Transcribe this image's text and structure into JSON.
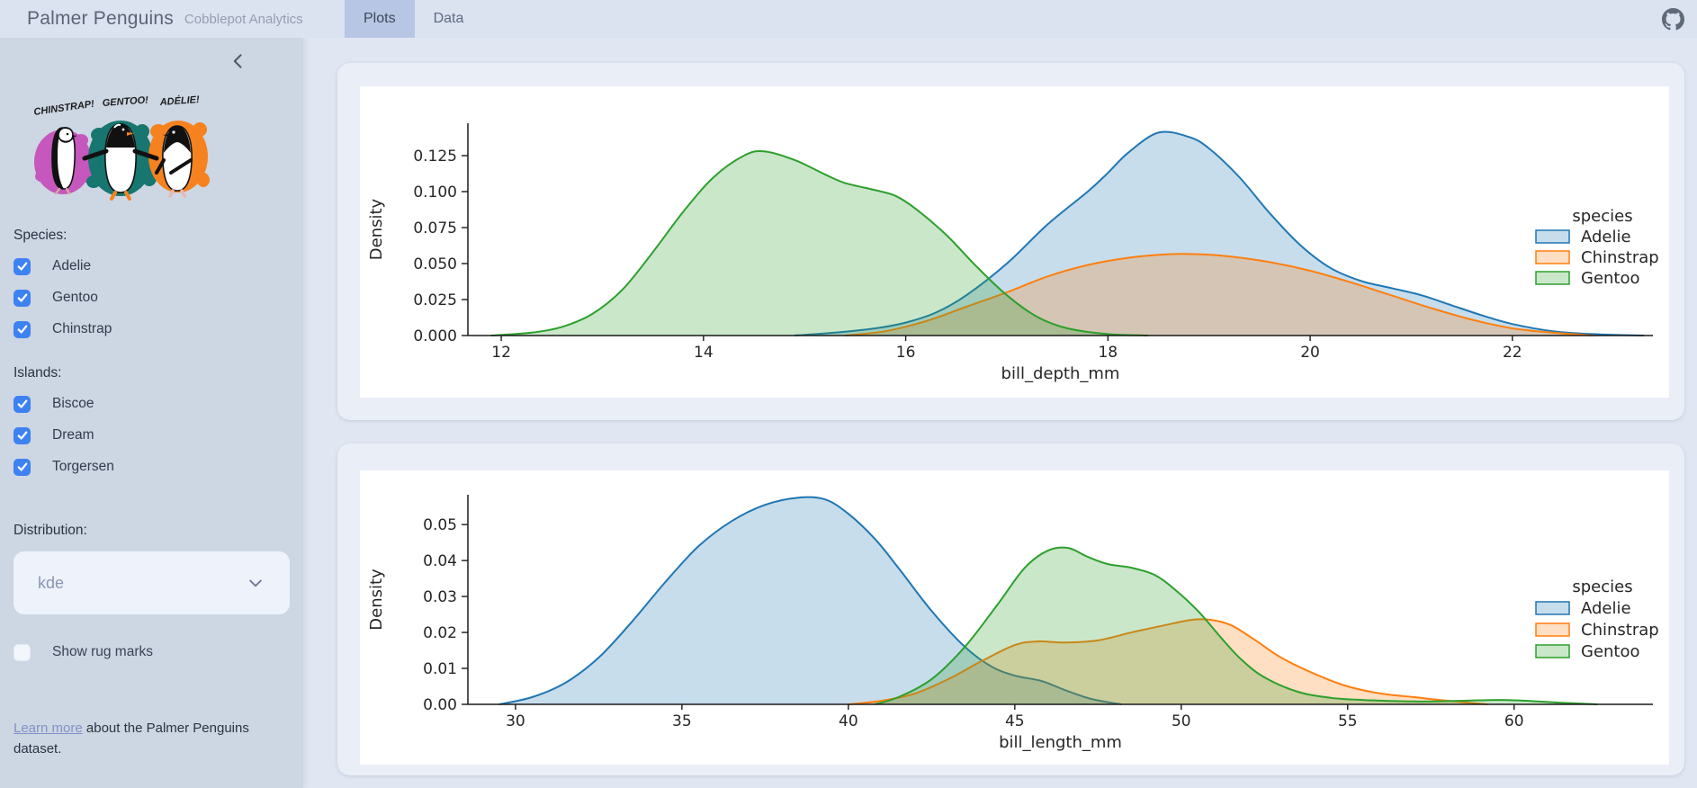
{
  "header": {
    "title": "Palmer Penguins",
    "subtitle": "Cobblepot Analytics",
    "tabs": [
      {
        "label": "Plots",
        "active": true
      },
      {
        "label": "Data",
        "active": false
      }
    ]
  },
  "sidebar": {
    "artwork_labels": [
      "CHINSTRAP!",
      "GENTOO!",
      "ADÉLIE!"
    ],
    "artwork_colors": [
      "#c557bd",
      "#17766f",
      "#f6821f"
    ],
    "species_label": "Species:",
    "species_options": [
      {
        "label": "Adelie",
        "checked": true
      },
      {
        "label": "Gentoo",
        "checked": true
      },
      {
        "label": "Chinstrap",
        "checked": true
      }
    ],
    "islands_label": "Islands:",
    "islands_options": [
      {
        "label": "Biscoe",
        "checked": true
      },
      {
        "label": "Dream",
        "checked": true
      },
      {
        "label": "Torgersen",
        "checked": true
      }
    ],
    "distribution_label": "Distribution:",
    "distribution_value": "kde",
    "rug_label": "Show rug marks",
    "rug_checked": false,
    "footer_link": "Learn more",
    "footer_text": " about the Palmer Penguins dataset."
  },
  "colors": {
    "checkbox_accent": "#3d82f2",
    "adelie": "#1f77b4",
    "chinstrap": "#ff7f0e",
    "gentoo": "#2ca02c",
    "header_bg": "#dbe2f0",
    "sidebar_bg": "#cdd6e3",
    "active_tab_bg": "#b7c6e5"
  },
  "chart_data": [
    {
      "type": "area",
      "kind": "kde",
      "xlabel": "bill_depth_mm",
      "ylabel": "Density",
      "xlim": [
        11.67,
        23.39
      ],
      "ylim": [
        0,
        0.1475
      ],
      "grid": false,
      "xticks": {
        "values": [
          12,
          14,
          16,
          18,
          20,
          22
        ],
        "labels": [
          "12",
          "14",
          "16",
          "18",
          "20",
          "22"
        ]
      },
      "yticks": {
        "values": [
          0,
          0.025,
          0.05,
          0.075,
          0.1,
          0.125
        ],
        "labels": [
          "0.000",
          "0.025",
          "0.050",
          "0.075",
          "0.100",
          "0.125"
        ]
      },
      "legend": {
        "title": "species",
        "position": "right",
        "entries": [
          "Adelie",
          "Chinstrap",
          "Gentoo"
        ]
      },
      "series": [
        {
          "name": "Adelie",
          "color": "#1f77b4",
          "x": [
            14.9,
            15.3,
            15.7,
            16.0,
            16.3,
            16.6,
            17.0,
            17.4,
            17.8,
            18.0,
            18.2,
            18.5,
            18.8,
            19.0,
            19.3,
            19.6,
            19.9,
            20.2,
            20.5,
            20.8,
            21.1,
            21.4,
            21.7,
            22.0,
            22.4,
            22.8,
            23.3
          ],
          "y": [
            0.0,
            0.002,
            0.005,
            0.009,
            0.016,
            0.028,
            0.05,
            0.077,
            0.1,
            0.113,
            0.127,
            0.141,
            0.138,
            0.13,
            0.11,
            0.085,
            0.063,
            0.047,
            0.038,
            0.033,
            0.028,
            0.021,
            0.014,
            0.008,
            0.003,
            0.001,
            0.0
          ]
        },
        {
          "name": "Chinstrap",
          "color": "#ff7f0e",
          "x": [
            15.4,
            15.8,
            16.2,
            16.6,
            17.0,
            17.4,
            17.8,
            18.2,
            18.6,
            18.9,
            19.2,
            19.6,
            20.0,
            20.4,
            20.8,
            21.2,
            21.6,
            22.0,
            22.4,
            22.8
          ],
          "y": [
            0.0,
            0.003,
            0.01,
            0.02,
            0.03,
            0.041,
            0.049,
            0.054,
            0.0565,
            0.0565,
            0.055,
            0.051,
            0.045,
            0.037,
            0.028,
            0.019,
            0.011,
            0.005,
            0.002,
            0.0
          ]
        },
        {
          "name": "Gentoo",
          "color": "#2ca02c",
          "x": [
            11.9,
            12.3,
            12.6,
            12.9,
            13.2,
            13.5,
            13.8,
            14.1,
            14.4,
            14.6,
            14.9,
            15.2,
            15.4,
            15.7,
            15.9,
            16.1,
            16.4,
            16.7,
            17.0,
            17.3,
            17.6,
            18.0,
            18.4
          ],
          "y": [
            0.0,
            0.002,
            0.006,
            0.015,
            0.032,
            0.058,
            0.086,
            0.11,
            0.125,
            0.128,
            0.122,
            0.112,
            0.106,
            0.101,
            0.097,
            0.088,
            0.07,
            0.048,
            0.028,
            0.013,
            0.005,
            0.001,
            0.0
          ]
        }
      ]
    },
    {
      "type": "area",
      "kind": "kde",
      "xlabel": "bill_length_mm",
      "ylabel": "Density",
      "xlim": [
        28.57,
        64.17
      ],
      "ylim": [
        0,
        0.0583
      ],
      "grid": false,
      "xticks": {
        "values": [
          30,
          35,
          40,
          45,
          50,
          55,
          60
        ],
        "labels": [
          "30",
          "35",
          "40",
          "45",
          "50",
          "55",
          "60"
        ]
      },
      "yticks": {
        "values": [
          0,
          0.01,
          0.02,
          0.03,
          0.04,
          0.05
        ],
        "labels": [
          "0.00",
          "0.01",
          "0.02",
          "0.03",
          "0.04",
          "0.05"
        ]
      },
      "legend": {
        "title": "species",
        "position": "right",
        "entries": [
          "Adelie",
          "Chinstrap",
          "Gentoo"
        ]
      },
      "series": [
        {
          "name": "Adelie",
          "color": "#1f77b4",
          "x": [
            29.5,
            30.5,
            31.5,
            32.5,
            33.5,
            34.5,
            35.5,
            36.5,
            37.5,
            38.5,
            39.3,
            40.0,
            40.8,
            41.5,
            42.5,
            43.5,
            44.3,
            45.0,
            45.8,
            46.5,
            47.3,
            48.2
          ],
          "y": [
            0.0,
            0.002,
            0.006,
            0.013,
            0.023,
            0.034,
            0.044,
            0.051,
            0.0555,
            0.0575,
            0.057,
            0.053,
            0.046,
            0.038,
            0.026,
            0.016,
            0.0105,
            0.008,
            0.0065,
            0.004,
            0.0015,
            0.0
          ]
        },
        {
          "name": "Chinstrap",
          "color": "#ff7f0e",
          "x": [
            40.0,
            41.0,
            42.0,
            43.0,
            44.0,
            45.0,
            45.7,
            46.5,
            47.5,
            48.5,
            49.5,
            50.3,
            50.9,
            51.5,
            52.2,
            53.0,
            54.0,
            55.0,
            56.0,
            57.0,
            58.0,
            59.2
          ],
          "y": [
            0.0,
            0.001,
            0.003,
            0.007,
            0.012,
            0.0165,
            0.0175,
            0.0172,
            0.0178,
            0.02,
            0.022,
            0.0235,
            0.0235,
            0.022,
            0.018,
            0.013,
            0.0085,
            0.005,
            0.003,
            0.002,
            0.001,
            0.0
          ]
        },
        {
          "name": "Gentoo",
          "color": "#2ca02c",
          "x": [
            40.8,
            41.5,
            42.5,
            43.5,
            44.5,
            45.3,
            46.0,
            46.6,
            47.2,
            47.8,
            48.5,
            49.2,
            49.8,
            50.5,
            51.2,
            51.8,
            52.5,
            53.5,
            54.5,
            55.5,
            57.0,
            58.5,
            59.8,
            61.5,
            62.5
          ],
          "y": [
            0.0,
            0.002,
            0.007,
            0.016,
            0.028,
            0.038,
            0.0428,
            0.0435,
            0.041,
            0.039,
            0.038,
            0.036,
            0.032,
            0.026,
            0.0185,
            0.0125,
            0.0075,
            0.0035,
            0.0018,
            0.0012,
            0.0008,
            0.001,
            0.0012,
            0.0004,
            0.0
          ]
        }
      ]
    }
  ]
}
